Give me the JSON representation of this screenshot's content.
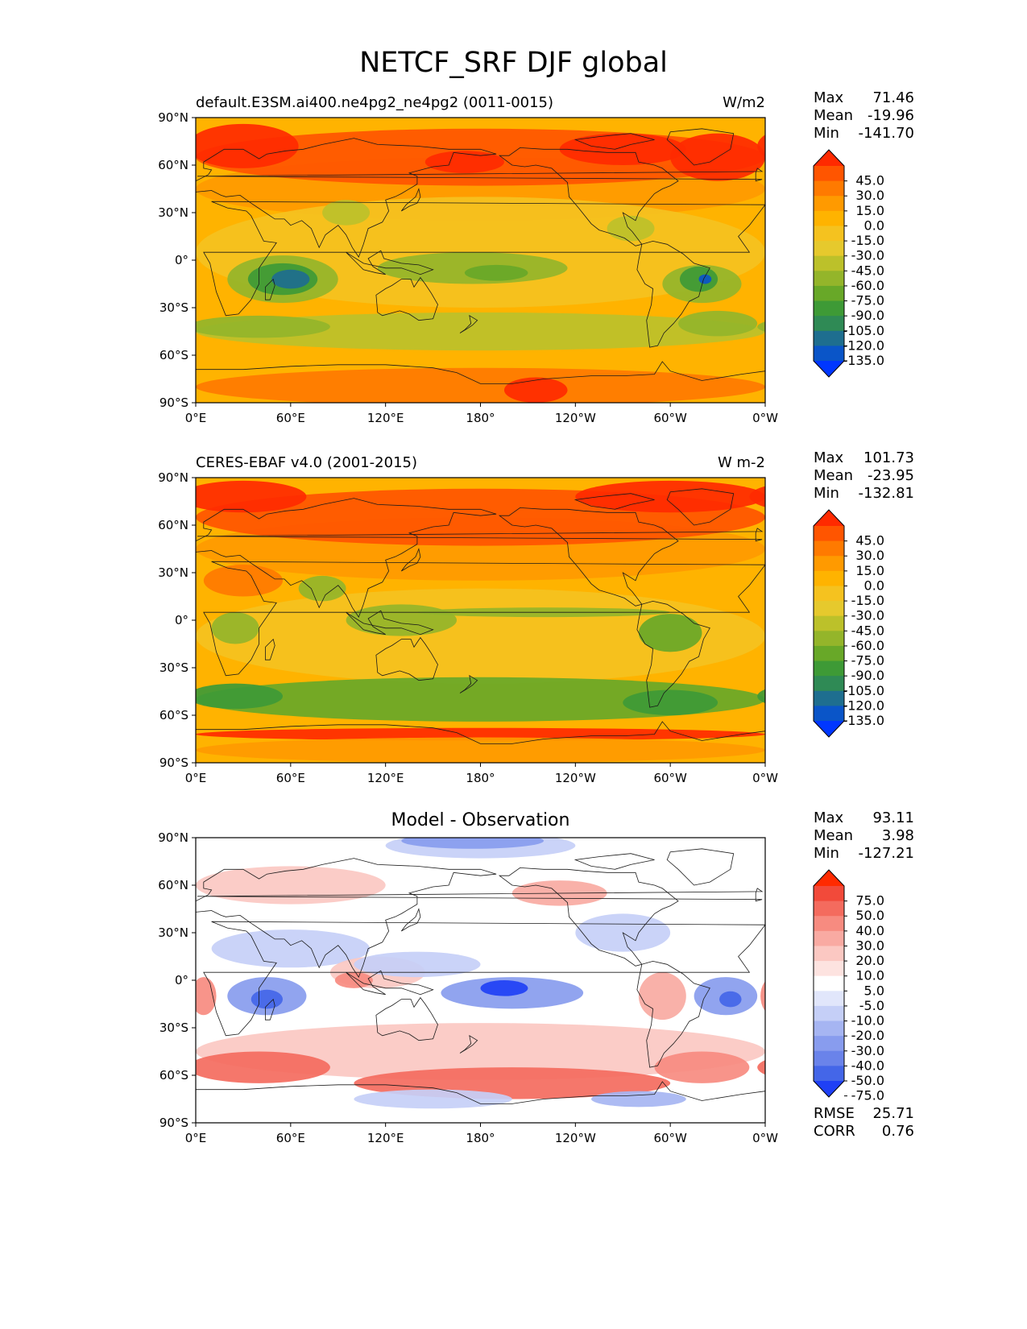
{
  "title": "NETCF_SRF DJF global",
  "axes": {
    "lat_labels": [
      "90°N",
      "60°N",
      "30°N",
      "0°",
      "30°S",
      "60°S",
      "90°S"
    ],
    "lon_labels": [
      "0°E",
      "60°E",
      "120°E",
      "180°",
      "120°W",
      "60°W",
      "0°W"
    ]
  },
  "panels": [
    {
      "id": "model",
      "title_left": "default.E3SM.ai400.ne4pg2_ne4pg2 (0011-0015)",
      "title_right": "W/m2",
      "title_center": "",
      "stats": [
        {
          "label": "Max",
          "value": "71.46"
        },
        {
          "label": "Mean",
          "value": "-19.96"
        },
        {
          "label": "Min",
          "value": "-141.70"
        }
      ]
    },
    {
      "id": "observation",
      "title_left": "CERES-EBAF v4.0 (2001-2015)",
      "title_right": "W m-2",
      "title_center": "",
      "stats": [
        {
          "label": "Max",
          "value": "101.73"
        },
        {
          "label": "Mean",
          "value": "-23.95"
        },
        {
          "label": "Min",
          "value": "-132.81"
        }
      ]
    },
    {
      "id": "difference",
      "title_left": "",
      "title_right": "",
      "title_center": "Model - Observation",
      "stats": [
        {
          "label": "Max",
          "value": "93.11"
        },
        {
          "label": "Mean",
          "value": "3.98"
        },
        {
          "label": "Min",
          "value": "-127.21"
        }
      ],
      "metrics": [
        {
          "label": "RMSE",
          "value": "25.71"
        },
        {
          "label": "CORR",
          "value": "0.76"
        }
      ]
    }
  ],
  "colorbars": {
    "field": {
      "ticks": [
        "45.0",
        "30.0",
        "15.0",
        "0.0",
        "-15.0",
        "-30.0",
        "-45.0",
        "-60.0",
        "-75.0",
        "-90.0",
        "-105.0",
        "-120.0",
        "-135.0"
      ],
      "colors": [
        "#ff2a00",
        "#ff5500",
        "#ff7a00",
        "#ff9a00",
        "#ffb300",
        "#f5c21f",
        "#e6c92d",
        "#bcc12a",
        "#94b52a",
        "#68a828",
        "#3e9a36",
        "#2f8a55",
        "#1e6e8f",
        "#0a55c8",
        "#0037ff"
      ]
    },
    "diff": {
      "ticks": [
        "75.0",
        "50.0",
        "40.0",
        "30.0",
        "20.0",
        "10.0",
        "5.0",
        "-5.0",
        "-10.0",
        "-20.0",
        "-30.0",
        "-40.0",
        "-50.0",
        "-75.0"
      ],
      "colors": [
        "#ff2a00",
        "#f24a3a",
        "#f46b5e",
        "#f78b80",
        "#f9aaa2",
        "#fbc8c2",
        "#fde3e0",
        "#ffffff",
        "#e1e6fb",
        "#c5cff7",
        "#a6b5f2",
        "#889cee",
        "#6a83ea",
        "#4466e8",
        "#1f40f5"
      ]
    }
  }
}
